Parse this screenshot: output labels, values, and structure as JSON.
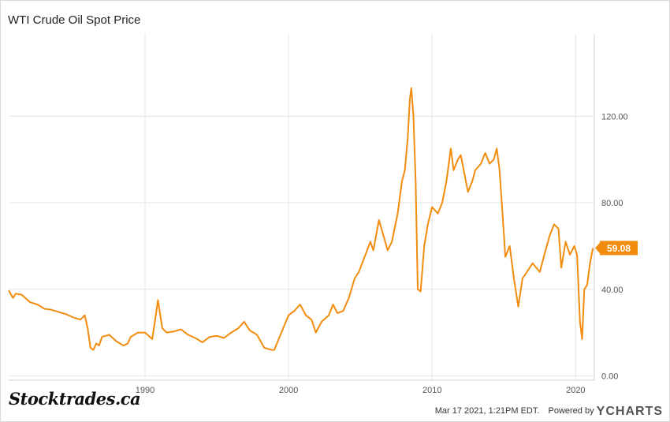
{
  "chart_data": {
    "type": "line",
    "title": "WTI Crude Oil Spot Price",
    "xlabel": "",
    "ylabel": "",
    "x_ticks": [
      "1990",
      "2000",
      "2010",
      "2020"
    ],
    "y_ticks": [
      "0.00",
      "40.00",
      "80.00",
      "120.00"
    ],
    "xlim": [
      1980.5,
      2021.3
    ],
    "ylim": [
      -2,
      158
    ],
    "grid": true,
    "last_value_label": "59.08",
    "series": [
      {
        "name": "",
        "color": "#f28c0e",
        "x": [
          1980.5,
          1980.8,
          1981.0,
          1981.4,
          1982.0,
          1982.5,
          1983.0,
          1983.5,
          1984.0,
          1984.5,
          1985.0,
          1985.5,
          1985.8,
          1986.0,
          1986.2,
          1986.4,
          1986.6,
          1986.8,
          1987.0,
          1987.5,
          1988.0,
          1988.5,
          1988.8,
          1989.0,
          1989.5,
          1990.0,
          1990.5,
          1990.75,
          1990.9,
          1991.2,
          1991.5,
          1992.0,
          1992.5,
          1993.0,
          1993.5,
          1994.0,
          1994.5,
          1995.0,
          1995.5,
          1996.0,
          1996.5,
          1996.9,
          1997.3,
          1997.8,
          1998.3,
          1998.8,
          1999.0,
          1999.5,
          2000.0,
          2000.4,
          2000.8,
          2001.2,
          2001.6,
          2001.9,
          2002.3,
          2002.8,
          2003.1,
          2003.4,
          2003.8,
          2004.2,
          2004.6,
          2004.9,
          2005.3,
          2005.7,
          2005.9,
          2006.3,
          2006.6,
          2006.9,
          2007.2,
          2007.6,
          2007.9,
          2008.1,
          2008.3,
          2008.45,
          2008.55,
          2008.7,
          2008.85,
          2009.0,
          2009.2,
          2009.45,
          2009.7,
          2010.0,
          2010.4,
          2010.7,
          2011.0,
          2011.3,
          2011.5,
          2011.8,
          2012.0,
          2012.2,
          2012.5,
          2012.8,
          2013.0,
          2013.4,
          2013.7,
          2014.0,
          2014.3,
          2014.5,
          2014.7,
          2014.9,
          2015.1,
          2015.4,
          2015.7,
          2016.0,
          2016.3,
          2016.6,
          2017.0,
          2017.5,
          2017.9,
          2018.2,
          2018.5,
          2018.8,
          2019.0,
          2019.3,
          2019.6,
          2019.9,
          2020.1,
          2020.3,
          2020.45,
          2020.6,
          2020.8,
          2021.0,
          2021.2
        ],
        "values": [
          39.5,
          36,
          38,
          37.5,
          34,
          33,
          31,
          30.5,
          29.5,
          28.5,
          27,
          26,
          28,
          22,
          13,
          12,
          15,
          14,
          18,
          19,
          16,
          14,
          15,
          18,
          20,
          20,
          17,
          28,
          35,
          22,
          20,
          20.5,
          21.5,
          19,
          17.5,
          15.5,
          18,
          18.5,
          17.5,
          20,
          22,
          25,
          21,
          19,
          13,
          12,
          12,
          20,
          28,
          30,
          33,
          28,
          26,
          20,
          25,
          28,
          33,
          29,
          30,
          36,
          45,
          48,
          55,
          62,
          58,
          72,
          65,
          58,
          62,
          75,
          90,
          95,
          110,
          128,
          133,
          120,
          90,
          40,
          39,
          60,
          70,
          78,
          75,
          80,
          90,
          105,
          95,
          100,
          102,
          95,
          85,
          90,
          95,
          98,
          103,
          98,
          100,
          105,
          95,
          75,
          55,
          60,
          45,
          32,
          45,
          48,
          52,
          48,
          58,
          65,
          70,
          68,
          50,
          62,
          56,
          60,
          56,
          25,
          17,
          40,
          42,
          52,
          59.08
        ]
      }
    ]
  },
  "footer": {
    "timestamp": "Mar 17 2021, 1:21PM EDT.",
    "powered_by": "Powered by",
    "brand_y": "Y",
    "brand_rest": "CHARTS"
  },
  "watermark": "Stocktrades.ca"
}
